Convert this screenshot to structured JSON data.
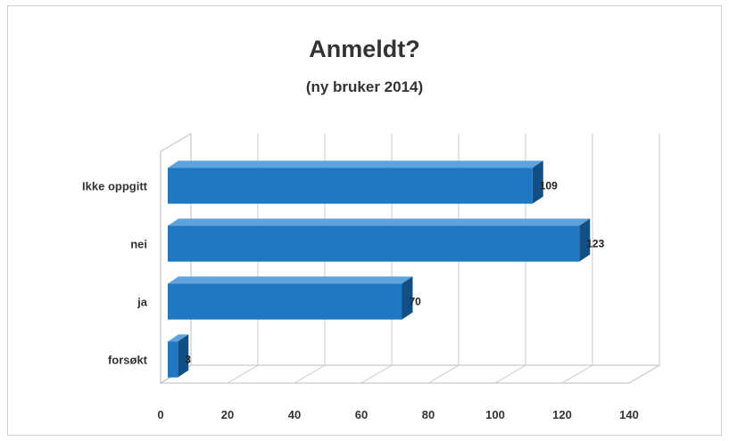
{
  "chart_data": {
    "type": "bar",
    "orientation": "horizontal",
    "title": "Anmeldt?",
    "subtitle": "(ny bruker 2014)",
    "categories": [
      "Ikke oppgitt",
      "nei",
      "ja",
      "forsøkt"
    ],
    "values": [
      109,
      123,
      70,
      3
    ],
    "xlim": [
      0,
      140
    ],
    "xticks": [
      0,
      20,
      40,
      60,
      80,
      100,
      120,
      140
    ],
    "grid": true,
    "legend": "none",
    "bar_color": "#1f78c1"
  }
}
